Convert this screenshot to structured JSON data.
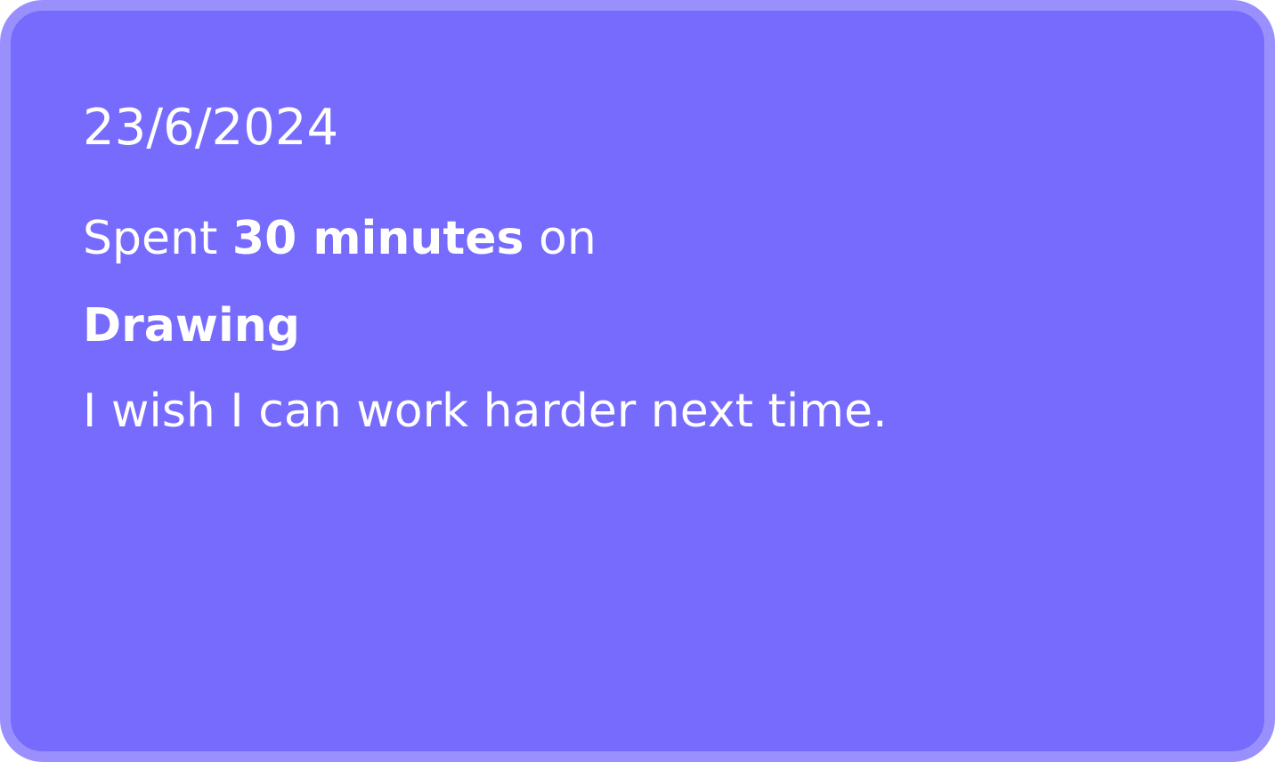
{
  "card": {
    "date": "23/6/2024",
    "spent_prefix": "Spent ",
    "duration": "30 minutes",
    "spent_suffix": " on",
    "activity": "Drawing",
    "note": "I wish I can work harder next time."
  },
  "colors": {
    "card_background": "#766bfd",
    "card_border": "#9a90fd",
    "text": "#ffffff"
  }
}
